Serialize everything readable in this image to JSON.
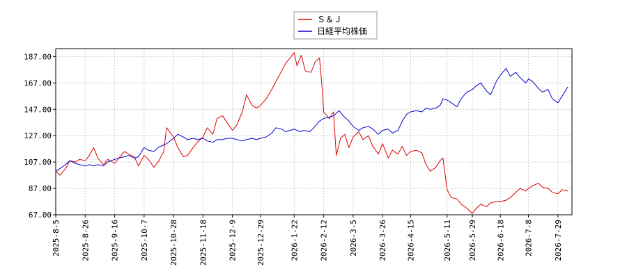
{
  "chart_data": {
    "type": "line",
    "title": "",
    "xlabel": "",
    "ylabel": "",
    "ylim": [
      67,
      193
    ],
    "yticks": [
      67.0,
      87.0,
      107.0,
      127.0,
      147.0,
      167.0,
      187.0
    ],
    "ytick_labels": [
      "67.00",
      "87.00",
      "107.00",
      "127.00",
      "147.00",
      "167.00",
      "187.00"
    ],
    "xlim": [
      "2025-08-05",
      "2026-08-08"
    ],
    "xticks": [
      "2025-08-05",
      "2025-08-26",
      "2025-09-16",
      "2025-10-07",
      "2025-10-28",
      "2025-11-18",
      "2025-12-09",
      "2025-12-29",
      "2026-01-22",
      "2026-02-12",
      "2026-03-05",
      "2026-03-26",
      "2026-04-15",
      "2026-05-11",
      "2026-05-29",
      "2026-06-18",
      "2026-07-08",
      "2026-07-29"
    ],
    "xtick_labels": [
      "2025-8-5",
      "2025-8-26",
      "2025-9-16",
      "2025-10-7",
      "2025-10-28",
      "2025-11-18",
      "2025-12-9",
      "2025-12-29",
      "2026-1-22",
      "2026-2-12",
      "2026-3-5",
      "2026-3-26",
      "2026-4-15",
      "2026-5-11",
      "2026-5-29",
      "2026-6-18",
      "2026-7-8",
      "2026-7-29"
    ],
    "grid": true,
    "legend_position": "top-center",
    "series": [
      {
        "name": "Ｓ＆Ｊ",
        "color": "#dd0000",
        "points": [
          [
            "2025-08-05",
            100
          ],
          [
            "2025-08-08",
            97
          ],
          [
            "2025-08-12",
            102
          ],
          [
            "2025-08-15",
            108
          ],
          [
            "2025-08-19",
            107
          ],
          [
            "2025-08-22",
            109
          ],
          [
            "2025-08-26",
            108
          ],
          [
            "2025-08-29",
            112
          ],
          [
            "2025-09-01",
            118
          ],
          [
            "2025-09-04",
            110
          ],
          [
            "2025-09-08",
            105
          ],
          [
            "2025-09-11",
            109
          ],
          [
            "2025-09-16",
            106
          ],
          [
            "2025-09-19",
            110
          ],
          [
            "2025-09-23",
            115
          ],
          [
            "2025-09-26",
            113
          ],
          [
            "2025-09-30",
            111
          ],
          [
            "2025-10-03",
            104
          ],
          [
            "2025-10-07",
            112
          ],
          [
            "2025-10-10",
            109
          ],
          [
            "2025-10-14",
            103
          ],
          [
            "2025-10-17",
            107
          ],
          [
            "2025-10-21",
            115
          ],
          [
            "2025-10-23",
            133
          ],
          [
            "2025-10-28",
            126
          ],
          [
            "2025-10-31",
            118
          ],
          [
            "2025-11-04",
            111
          ],
          [
            "2025-11-07",
            112
          ],
          [
            "2025-11-11",
            118
          ],
          [
            "2025-11-14",
            122
          ],
          [
            "2025-11-18",
            126
          ],
          [
            "2025-11-21",
            133
          ],
          [
            "2025-11-25",
            128
          ],
          [
            "2025-11-28",
            140
          ],
          [
            "2025-12-02",
            142
          ],
          [
            "2025-12-05",
            137
          ],
          [
            "2025-12-09",
            131
          ],
          [
            "2025-12-12",
            135
          ],
          [
            "2025-12-16",
            145
          ],
          [
            "2025-12-19",
            158
          ],
          [
            "2025-12-23",
            150
          ],
          [
            "2025-12-26",
            148
          ],
          [
            "2025-12-29",
            150
          ],
          [
            "2026-01-02",
            155
          ],
          [
            "2026-01-06",
            162
          ],
          [
            "2026-01-09",
            168
          ],
          [
            "2026-01-13",
            176
          ],
          [
            "2026-01-16",
            182
          ],
          [
            "2026-01-19",
            186
          ],
          [
            "2026-01-22",
            190
          ],
          [
            "2026-01-24",
            180
          ],
          [
            "2026-01-27",
            188
          ],
          [
            "2026-01-30",
            176
          ],
          [
            "2026-02-03",
            175
          ],
          [
            "2026-02-06",
            183
          ],
          [
            "2026-02-09",
            186
          ],
          [
            "2026-02-11",
            162
          ],
          [
            "2026-02-12",
            145
          ],
          [
            "2026-02-16",
            140
          ],
          [
            "2026-02-19",
            145
          ],
          [
            "2026-02-21",
            112
          ],
          [
            "2026-02-24",
            125
          ],
          [
            "2026-02-27",
            128
          ],
          [
            "2026-03-02",
            118
          ],
          [
            "2026-03-05",
            126
          ],
          [
            "2026-03-09",
            130
          ],
          [
            "2026-03-12",
            124
          ],
          [
            "2026-03-16",
            127
          ],
          [
            "2026-03-19",
            119
          ],
          [
            "2026-03-23",
            113
          ],
          [
            "2026-03-26",
            121
          ],
          [
            "2026-03-30",
            110
          ],
          [
            "2026-04-02",
            116
          ],
          [
            "2026-04-06",
            113
          ],
          [
            "2026-04-09",
            119
          ],
          [
            "2026-04-12",
            112
          ],
          [
            "2026-04-15",
            115
          ],
          [
            "2026-04-19",
            116
          ],
          [
            "2026-04-23",
            114
          ],
          [
            "2026-04-26",
            105
          ],
          [
            "2026-04-29",
            100
          ],
          [
            "2026-05-03",
            103
          ],
          [
            "2026-05-06",
            108
          ],
          [
            "2026-05-08",
            110
          ],
          [
            "2026-05-11",
            86
          ],
          [
            "2026-05-14",
            80
          ],
          [
            "2026-05-18",
            79
          ],
          [
            "2026-05-21",
            75
          ],
          [
            "2026-05-25",
            72
          ],
          [
            "2026-05-29",
            68
          ],
          [
            "2026-06-01",
            72
          ],
          [
            "2026-06-04",
            75
          ],
          [
            "2026-06-08",
            73
          ],
          [
            "2026-06-11",
            76
          ],
          [
            "2026-06-15",
            77
          ],
          [
            "2026-06-18",
            77
          ],
          [
            "2026-06-22",
            78
          ],
          [
            "2026-06-25",
            80
          ],
          [
            "2026-06-29",
            84
          ],
          [
            "2026-07-02",
            87
          ],
          [
            "2026-07-06",
            85
          ],
          [
            "2026-07-08",
            87
          ],
          [
            "2026-07-11",
            89
          ],
          [
            "2026-07-15",
            91
          ],
          [
            "2026-07-18",
            88
          ],
          [
            "2026-07-22",
            87
          ],
          [
            "2026-07-25",
            84
          ],
          [
            "2026-07-29",
            83
          ],
          [
            "2026-08-01",
            86
          ],
          [
            "2026-08-05",
            85
          ]
        ]
      },
      {
        "name": "日経平均株価",
        "color": "#0000cc",
        "points": [
          [
            "2025-08-05",
            100
          ],
          [
            "2025-08-08",
            102
          ],
          [
            "2025-08-12",
            105
          ],
          [
            "2025-08-15",
            108
          ],
          [
            "2025-08-19",
            106
          ],
          [
            "2025-08-22",
            105
          ],
          [
            "2025-08-26",
            104
          ],
          [
            "2025-08-29",
            105
          ],
          [
            "2025-09-01",
            104
          ],
          [
            "2025-09-04",
            105
          ],
          [
            "2025-09-08",
            104
          ],
          [
            "2025-09-11",
            107
          ],
          [
            "2025-09-16",
            109
          ],
          [
            "2025-09-19",
            110
          ],
          [
            "2025-09-23",
            111
          ],
          [
            "2025-09-26",
            112
          ],
          [
            "2025-09-30",
            110
          ],
          [
            "2025-10-03",
            111
          ],
          [
            "2025-10-07",
            118
          ],
          [
            "2025-10-10",
            116
          ],
          [
            "2025-10-14",
            115
          ],
          [
            "2025-10-17",
            118
          ],
          [
            "2025-10-21",
            120
          ],
          [
            "2025-10-23",
            121
          ],
          [
            "2025-10-28",
            125
          ],
          [
            "2025-10-31",
            128
          ],
          [
            "2025-11-04",
            126
          ],
          [
            "2025-11-07",
            124
          ],
          [
            "2025-11-11",
            125
          ],
          [
            "2025-11-14",
            124
          ],
          [
            "2025-11-18",
            125
          ],
          [
            "2025-11-21",
            123
          ],
          [
            "2025-11-25",
            122
          ],
          [
            "2025-11-28",
            124
          ],
          [
            "2025-12-02",
            124
          ],
          [
            "2025-12-05",
            125
          ],
          [
            "2025-12-09",
            125
          ],
          [
            "2025-12-12",
            124
          ],
          [
            "2025-12-16",
            123
          ],
          [
            "2025-12-19",
            124
          ],
          [
            "2025-12-23",
            125
          ],
          [
            "2025-12-26",
            124
          ],
          [
            "2025-12-29",
            125
          ],
          [
            "2026-01-02",
            126
          ],
          [
            "2026-01-06",
            129
          ],
          [
            "2026-01-09",
            133
          ],
          [
            "2026-01-13",
            132
          ],
          [
            "2026-01-16",
            130
          ],
          [
            "2026-01-19",
            131
          ],
          [
            "2026-01-22",
            132
          ],
          [
            "2026-01-26",
            130
          ],
          [
            "2026-01-29",
            131
          ],
          [
            "2026-02-02",
            130
          ],
          [
            "2026-02-05",
            133
          ],
          [
            "2026-02-09",
            138
          ],
          [
            "2026-02-12",
            140
          ],
          [
            "2026-02-16",
            141
          ],
          [
            "2026-02-19",
            142
          ],
          [
            "2026-02-23",
            146
          ],
          [
            "2026-02-26",
            142
          ],
          [
            "2026-03-02",
            138
          ],
          [
            "2026-03-05",
            134
          ],
          [
            "2026-03-09",
            131
          ],
          [
            "2026-03-12",
            133
          ],
          [
            "2026-03-16",
            134
          ],
          [
            "2026-03-19",
            132
          ],
          [
            "2026-03-23",
            128
          ],
          [
            "2026-03-26",
            131
          ],
          [
            "2026-03-30",
            132
          ],
          [
            "2026-04-02",
            129
          ],
          [
            "2026-04-06",
            131
          ],
          [
            "2026-04-09",
            138
          ],
          [
            "2026-04-12",
            143
          ],
          [
            "2026-04-15",
            145
          ],
          [
            "2026-04-19",
            146
          ],
          [
            "2026-04-23",
            145
          ],
          [
            "2026-04-26",
            148
          ],
          [
            "2026-04-29",
            147
          ],
          [
            "2026-05-03",
            148
          ],
          [
            "2026-05-06",
            150
          ],
          [
            "2026-05-08",
            155
          ],
          [
            "2026-05-11",
            154
          ],
          [
            "2026-05-14",
            152
          ],
          [
            "2026-05-18",
            149
          ],
          [
            "2026-05-21",
            155
          ],
          [
            "2026-05-25",
            160
          ],
          [
            "2026-05-29",
            162
          ],
          [
            "2026-06-01",
            165
          ],
          [
            "2026-06-04",
            167
          ],
          [
            "2026-06-08",
            161
          ],
          [
            "2026-06-11",
            158
          ],
          [
            "2026-06-15",
            168
          ],
          [
            "2026-06-18",
            173
          ],
          [
            "2026-06-22",
            178
          ],
          [
            "2026-06-25",
            172
          ],
          [
            "2026-06-29",
            175
          ],
          [
            "2026-07-02",
            171
          ],
          [
            "2026-07-06",
            167
          ],
          [
            "2026-07-08",
            170
          ],
          [
            "2026-07-11",
            168
          ],
          [
            "2026-07-15",
            163
          ],
          [
            "2026-07-18",
            160
          ],
          [
            "2026-07-22",
            162
          ],
          [
            "2026-07-25",
            155
          ],
          [
            "2026-07-29",
            152
          ],
          [
            "2026-08-01",
            157
          ],
          [
            "2026-08-05",
            164
          ]
        ]
      }
    ]
  }
}
